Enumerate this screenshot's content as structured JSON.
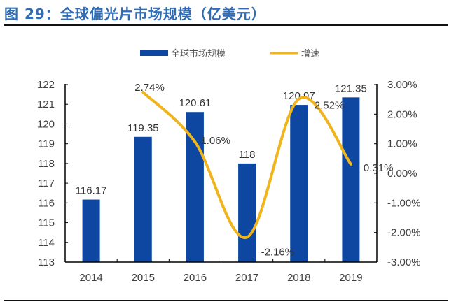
{
  "title": "图 29：全球偏光片市场规模（亿美元）",
  "chart_data": {
    "type": "bar+line",
    "title": "图 29：全球偏光片市场规模（亿美元）",
    "categories": [
      "2014",
      "2015",
      "2016",
      "2017",
      "2018",
      "2019"
    ],
    "series": [
      {
        "name": "全球市场规模",
        "type": "bar",
        "axis": "left",
        "color": "#0d47a1",
        "values": [
          116.17,
          119.35,
          120.61,
          118,
          120.97,
          121.35
        ],
        "labels": [
          "116.17",
          "119.35",
          "120.61",
          "118",
          "120.97",
          "121.35"
        ]
      },
      {
        "name": "增速",
        "type": "line",
        "smooth": true,
        "axis": "right",
        "color": "#f0b41c",
        "values": [
          null,
          2.74,
          1.06,
          -2.16,
          2.52,
          0.31
        ],
        "labels": [
          null,
          "2.74%",
          "1.06%",
          "-2.16%",
          "2.52%",
          "0.31%"
        ]
      }
    ],
    "y_left": {
      "min": 113,
      "max": 122,
      "ticks": [
        "113",
        "114",
        "115",
        "116",
        "117",
        "118",
        "119",
        "120",
        "121",
        "122"
      ]
    },
    "y_right": {
      "min": -3,
      "max": 3,
      "ticks": [
        "-3.00%",
        "-2.00%",
        "-1.00%",
        "0.00%",
        "1.00%",
        "2.00%",
        "3.00%"
      ]
    },
    "grid": false,
    "legend": "top"
  }
}
